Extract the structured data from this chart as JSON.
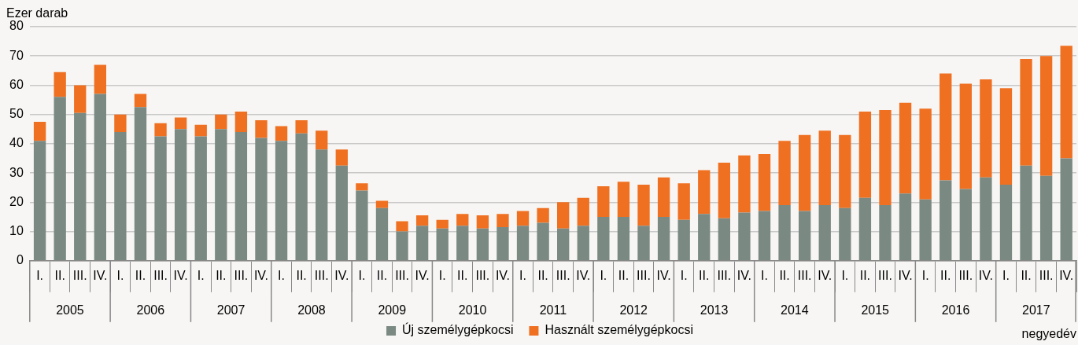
{
  "chart_data": {
    "type": "bar",
    "stacked": true,
    "ylabel": "Ezer darab",
    "xlabel": "negyedév",
    "categories": [
      "I.",
      "II.",
      "III.",
      "IV.",
      "I.",
      "II.",
      "III.",
      "IV.",
      "I.",
      "II.",
      "III.",
      "IV.",
      "I.",
      "II.",
      "III.",
      "IV.",
      "I.",
      "II.",
      "III.",
      "IV.",
      "I.",
      "II.",
      "III.",
      "IV.",
      "I.",
      "II.",
      "III.",
      "IV.",
      "I.",
      "II.",
      "III.",
      "IV.",
      "I.",
      "II.",
      "III.",
      "IV.",
      "I.",
      "II.",
      "III.",
      "IV.",
      "I.",
      "II.",
      "III.",
      "IV.",
      "I.",
      "II.",
      "III.",
      "IV.",
      "I.",
      "II.",
      "III.",
      "IV."
    ],
    "annotations": [
      "2005",
      "2006",
      "2007",
      "2008",
      "2009",
      "2010",
      "2011",
      "2012",
      "2013",
      "2014",
      "2015",
      "2016",
      "2017"
    ],
    "series": [
      {
        "name": "Új személygépkocsi",
        "color": "#7a8a82",
        "values": [
          41,
          56,
          50.5,
          57,
          44,
          52.5,
          42.5,
          45,
          42.5,
          45,
          44,
          42,
          41,
          43.5,
          38,
          32.5,
          24,
          18,
          10,
          12,
          11,
          12,
          11,
          11.5,
          12,
          13,
          11,
          12,
          15,
          15,
          12,
          15,
          14,
          16,
          14.5,
          16.5,
          17,
          19,
          17,
          19,
          18,
          21.5,
          19,
          23,
          21,
          27.5,
          24.5,
          28.5,
          26,
          32.5,
          29,
          35
        ]
      },
      {
        "name": "Használt személygépkocsi",
        "color": "#f07022",
        "values": [
          6.5,
          8.5,
          9.5,
          10,
          6,
          4.5,
          4.5,
          4,
          4,
          5,
          7,
          6,
          5,
          4.5,
          6.5,
          5.5,
          2.5,
          2.5,
          3.5,
          3.5,
          3,
          4,
          4.5,
          4.5,
          5,
          5,
          9,
          9.5,
          10.5,
          12,
          14,
          13.5,
          12.5,
          15,
          19,
          19.5,
          19.5,
          22,
          26,
          25.5,
          25,
          29.5,
          32.5,
          31,
          31,
          36.5,
          36,
          33.5,
          33,
          36.5,
          41,
          38.5
        ]
      }
    ],
    "ylim": [
      0,
      80
    ],
    "yticks": [
      0,
      10,
      20,
      30,
      40,
      50,
      60,
      70,
      80
    ],
    "grid": "y",
    "legend": "bottom"
  }
}
